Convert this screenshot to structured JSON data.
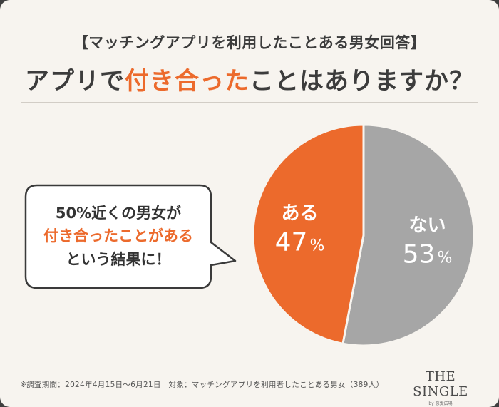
{
  "header": {
    "subtitle": "【マッチングアプリを利用したことある男女回答】",
    "title_pre": "アプリで",
    "title_highlight": "付き合った",
    "title_post": "ことはありますか？"
  },
  "callout": {
    "line1": "50%近くの男女が",
    "line2": "付き合ったことがある",
    "line3": "という結果に！"
  },
  "footer": {
    "note": "※調査期間：2024年4月15日～6月21日　対象：マッチングアプリを利用者したことある男女（389人）"
  },
  "logo": {
    "name": "THE SINGLE",
    "sub": "by 恋愛広場"
  },
  "colors": {
    "accent": "#ec6a2c",
    "gray": "#a6a6a6",
    "text": "#3c3c3c"
  },
  "chart_data": {
    "type": "pie",
    "title": "",
    "slices": [
      {
        "label": "ない",
        "value": 53,
        "display": "53",
        "color": "#a6a6a6"
      },
      {
        "label": "ある",
        "value": 47,
        "display": "47",
        "color": "#ec6a2c"
      }
    ],
    "unit": "%",
    "start_angle_deg": 0,
    "direction": "clockwise",
    "legend": "none"
  }
}
